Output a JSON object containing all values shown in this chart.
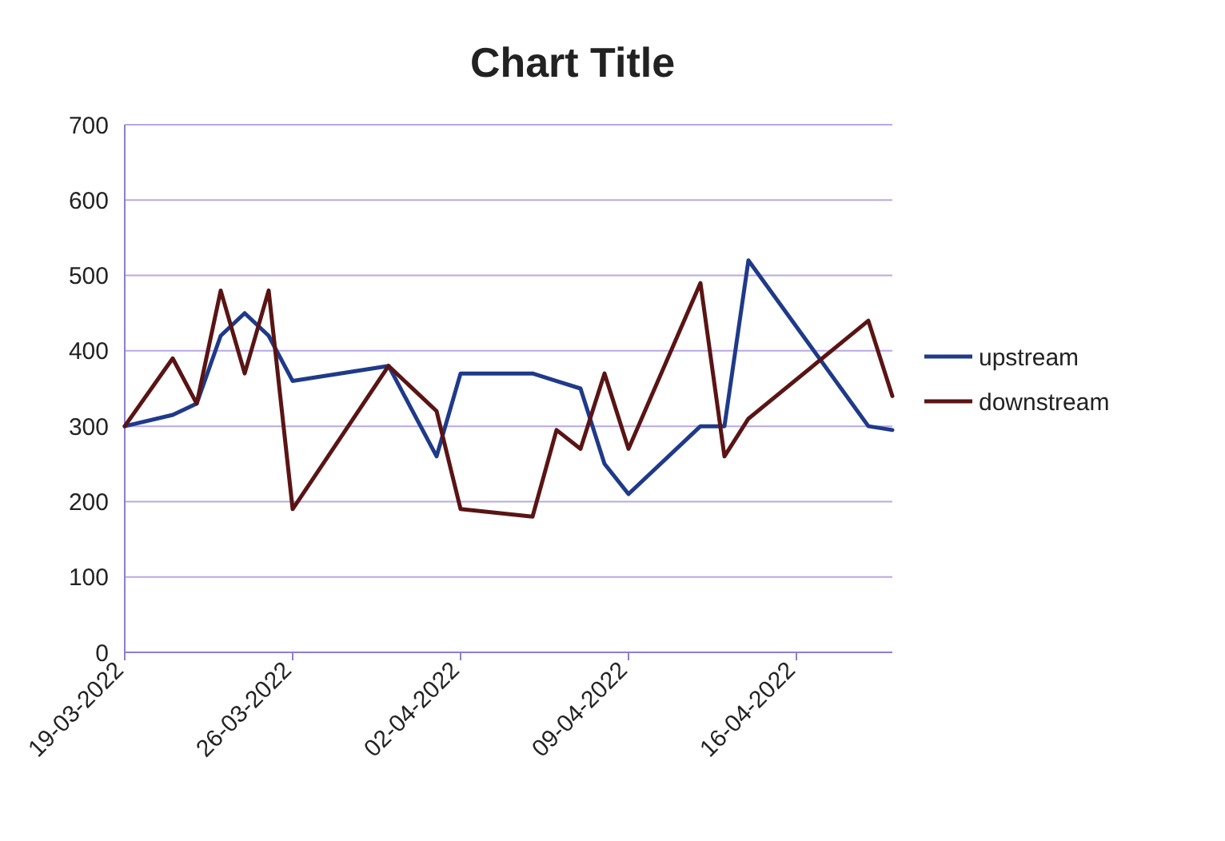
{
  "chart_data": {
    "type": "line",
    "title": "Chart Title",
    "x": [
      "2022-03-19",
      "2022-03-21",
      "2022-03-22",
      "2022-03-23",
      "2022-03-24",
      "2022-03-25",
      "2022-03-26",
      "2022-03-30",
      "2022-04-01",
      "2022-04-02",
      "2022-04-05",
      "2022-04-06",
      "2022-04-07",
      "2022-04-08",
      "2022-04-09",
      "2022-04-12",
      "2022-04-13",
      "2022-04-14",
      "2022-04-19",
      "2022-04-20"
    ],
    "series": [
      {
        "name": "upstream",
        "color": "#1f3a8a",
        "values": [
          300,
          315,
          330,
          420,
          450,
          420,
          360,
          380,
          260,
          370,
          370,
          360,
          350,
          250,
          210,
          300,
          300,
          520,
          300,
          295
        ]
      },
      {
        "name": "downstream",
        "color": "#5a1414",
        "values": [
          300,
          390,
          330,
          480,
          370,
          480,
          190,
          380,
          320,
          190,
          180,
          295,
          270,
          370,
          270,
          490,
          260,
          310,
          440,
          340
        ]
      }
    ],
    "xlim": [
      "2022-03-19",
      "2022-04-20"
    ],
    "xticks": [
      {
        "value": "2022-03-19",
        "label": "19-03-2022"
      },
      {
        "value": "2022-03-26",
        "label": "26-03-2022"
      },
      {
        "value": "2022-04-02",
        "label": "02-04-2022"
      },
      {
        "value": "2022-04-09",
        "label": "09-04-2022"
      },
      {
        "value": "2022-04-16",
        "label": "16-04-2022"
      }
    ],
    "ylim": [
      0,
      700
    ],
    "yticks": [
      0,
      100,
      200,
      300,
      400,
      500,
      600,
      700
    ],
    "grid": "y",
    "legend": "right",
    "marker": "none",
    "line_style": "solid"
  }
}
